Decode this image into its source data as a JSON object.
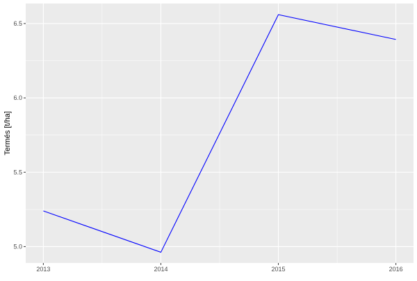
{
  "chart_data": {
    "type": "line",
    "title": "",
    "xlabel": "",
    "ylabel": "Termés [t/ha]",
    "x": [
      2013,
      2014,
      2015,
      2016
    ],
    "series": [
      {
        "values": [
          5.24,
          4.962,
          6.56,
          6.393
        ],
        "color": "#0000FF"
      }
    ],
    "xticks": [
      "2013",
      "2014",
      "2015",
      "2016"
    ],
    "yticks": [
      "5.0",
      "5.5",
      "6.0",
      "6.5"
    ],
    "xlim": [
      2012.85,
      2016.15
    ],
    "ylim": [
      4.89,
      6.635
    ],
    "grid": true,
    "panel_background": "#EBEBEB",
    "grid_color": "#FFFFFF"
  }
}
